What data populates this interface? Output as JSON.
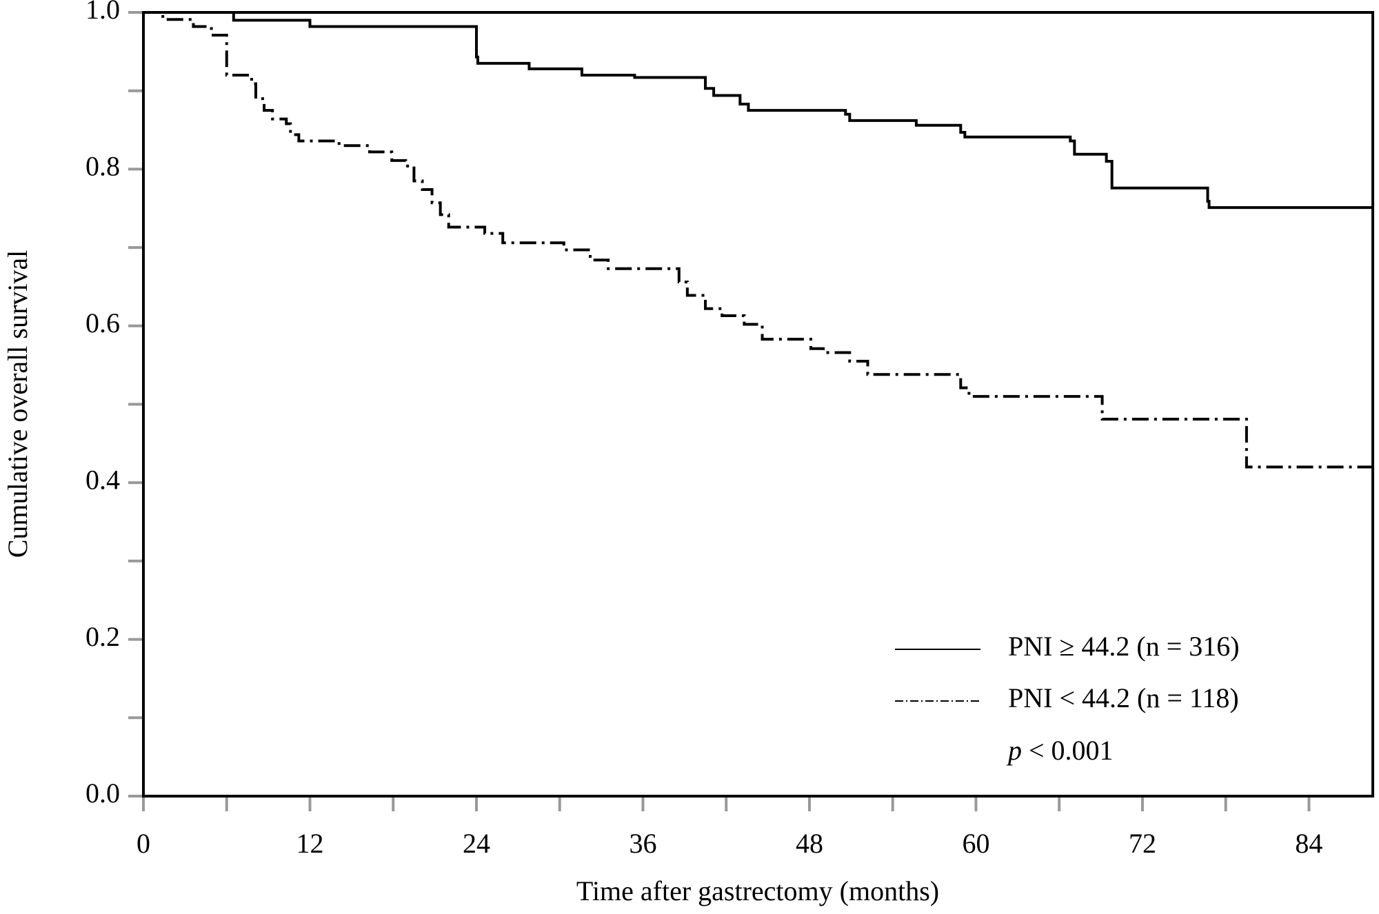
{
  "chart_data": {
    "type": "step",
    "x_label": "Time after gastrectomy (months)",
    "y_label": "Cumulative overall survival",
    "annotation": "p < 0.001",
    "xlim": [
      0,
      88.6
    ],
    "ylim": [
      0,
      1
    ],
    "xticks": [
      0,
      12,
      24,
      36,
      48,
      60,
      72,
      84
    ],
    "xminorticks": [
      6,
      18,
      30,
      42,
      54,
      66,
      78
    ],
    "yticks": [
      {
        "value": 0,
        "label": "0.0"
      },
      {
        "value": 0.2,
        "label": "0.2"
      },
      {
        "value": 0.4,
        "label": "0.4"
      },
      {
        "value": 0.6,
        "label": "0.6"
      },
      {
        "value": 0.8,
        "label": "0.8"
      },
      {
        "value": 1,
        "label": "1.0"
      }
    ],
    "yminorticks": [
      0.1,
      0.3,
      0.5,
      0.7,
      0.9
    ],
    "series": [
      {
        "name": "PNI ≥ 44.2 (n = 316)",
        "color": "#000000",
        "dash": "none",
        "x": [
          0,
          6.5,
          12,
          24,
          24.1,
          27.8,
          31.6,
          35.4,
          40.5,
          41.1,
          43,
          43.6,
          50.6,
          50.9,
          55.7,
          58.9,
          59.2,
          66.8,
          67.1,
          69.4,
          69.8,
          76.7,
          76.8,
          88.6
        ],
        "values": [
          1,
          0.99,
          0.982,
          0.943,
          0.935,
          0.928,
          0.92,
          0.917,
          0.903,
          0.894,
          0.883,
          0.875,
          0.87,
          0.862,
          0.856,
          0.847,
          0.841,
          0.836,
          0.819,
          0.81,
          0.776,
          0.759,
          0.751,
          0.751
        ]
      },
      {
        "name": "PNI < 44.2 (n = 118)",
        "color": "#000000",
        "dash": "24,8,4,8",
        "x": [
          0,
          1.4,
          3.6,
          4.9,
          6,
          7.8,
          8.1,
          8.7,
          9.3,
          10.3,
          10.6,
          11.2,
          14.1,
          16.3,
          17.9,
          18.9,
          19.5,
          20.1,
          20.8,
          21.4,
          22,
          24.6,
          25.9,
          30.3,
          32.2,
          33.5,
          38.6,
          39.2,
          40.5,
          41.7,
          43.3,
          44.6,
          48.1,
          49,
          50.9,
          52.2,
          58.9,
          59.5,
          69.1,
          79.5,
          88.6
        ],
        "values": [
          1,
          0.991,
          0.982,
          0.971,
          0.92,
          0.909,
          0.89,
          0.875,
          0.864,
          0.858,
          0.844,
          0.836,
          0.83,
          0.822,
          0.811,
          0.804,
          0.785,
          0.774,
          0.757,
          0.742,
          0.726,
          0.718,
          0.706,
          0.697,
          0.684,
          0.673,
          0.656,
          0.639,
          0.622,
          0.613,
          0.602,
          0.583,
          0.571,
          0.566,
          0.555,
          0.538,
          0.521,
          0.51,
          0.481,
          0.42,
          0.42
        ]
      }
    ]
  }
}
